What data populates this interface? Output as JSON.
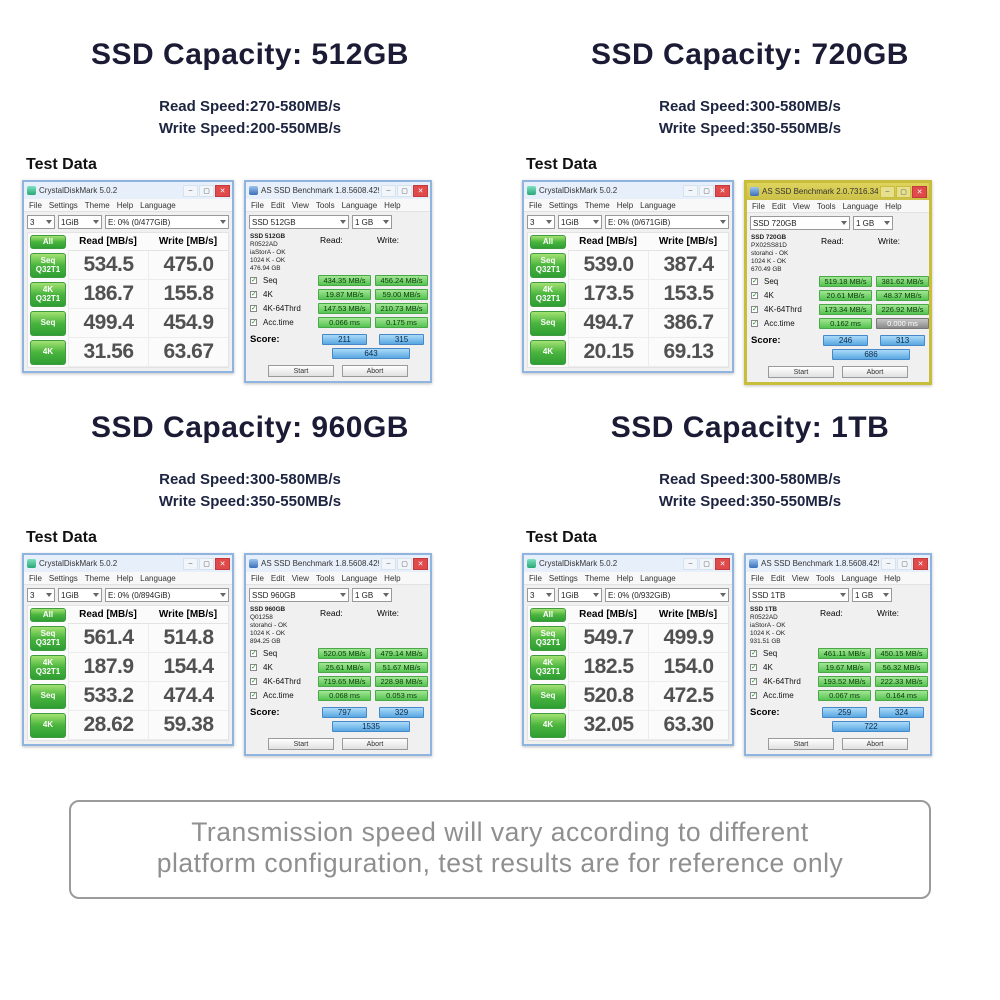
{
  "sections": [
    {
      "title": "SSD Capacity: 512GB",
      "read_speed": "Read Speed:270-580MB/s",
      "write_speed": "Write Speed:200-550MB/s",
      "test_data_label": "Test Data",
      "cdm": {
        "title": "CrystalDiskMark 5.0.2",
        "menu": [
          "File",
          "Settings",
          "Theme",
          "Help",
          "Language"
        ],
        "dropdowns": [
          "3",
          "1GiB",
          "E: 0% (0/477GiB)"
        ],
        "all_label": "All",
        "read_header": "Read [MB/s]",
        "write_header": "Write [MB/s]",
        "rows": [
          {
            "label": "Seq Q32T1",
            "read": "534.5",
            "write": "475.0"
          },
          {
            "label": "4K Q32T1",
            "read": "186.7",
            "write": "155.8"
          },
          {
            "label": "Seq",
            "read": "499.4",
            "write": "454.9"
          },
          {
            "label": "4K",
            "read": "31.56",
            "write": "63.67"
          }
        ]
      },
      "asd": {
        "title": "AS SSD Benchmark 1.8.5608.42992",
        "menu": [
          "File",
          "Edit",
          "View",
          "Tools",
          "Language",
          "Help"
        ],
        "dropdown1": "SSD 512GB",
        "dropdown2": "1 GB",
        "drive_info": [
          "SSD 512GB",
          "R0522AD",
          "iaStorA - OK",
          "1024 K - OK",
          "476.94 GB"
        ],
        "read_header": "Read:",
        "write_header": "Write:",
        "rows": [
          {
            "label": "Seq",
            "read": "434.35 MB/s",
            "write": "456.24 MB/s"
          },
          {
            "label": "4K",
            "read": "19.87 MB/s",
            "write": "59.00 MB/s"
          },
          {
            "label": "4K-64Thrd",
            "read": "147.53 MB/s",
            "write": "210.73 MB/s"
          },
          {
            "label": "Acc.time",
            "read": "0.066 ms",
            "write": "0.175 ms"
          }
        ],
        "score_label": "Score:",
        "score_read": "211",
        "score_write": "315",
        "score_total": "643",
        "start_label": "Start",
        "abort_label": "Abort",
        "theme": "blue"
      }
    },
    {
      "title": "SSD Capacity: 720GB",
      "read_speed": "Read Speed:300-580MB/s",
      "write_speed": "Write Speed:350-550MB/s",
      "test_data_label": "Test Data",
      "cdm": {
        "title": "CrystalDiskMark 5.0.2",
        "menu": [
          "File",
          "Settings",
          "Theme",
          "Help",
          "Language"
        ],
        "dropdowns": [
          "3",
          "1GiB",
          "E: 0% (0/671GiB)"
        ],
        "all_label": "All",
        "read_header": "Read [MB/s]",
        "write_header": "Write [MB/s]",
        "rows": [
          {
            "label": "Seq Q32T1",
            "read": "539.0",
            "write": "387.4"
          },
          {
            "label": "4K Q32T1",
            "read": "173.5",
            "write": "153.5"
          },
          {
            "label": "Seq",
            "read": "494.7",
            "write": "386.7"
          },
          {
            "label": "4K",
            "read": "20.15",
            "write": "69.13"
          }
        ]
      },
      "asd": {
        "title": "AS SSD Benchmark 2.0.7316.34247",
        "menu": [
          "File",
          "Edit",
          "View",
          "Tools",
          "Language",
          "Help"
        ],
        "dropdown1": "SSD 720GB",
        "dropdown2": "1 GB",
        "drive_info": [
          "SSD 720GB",
          "PX02SS81D",
          "storahci - OK",
          "1024 K - OK",
          "670.49 GB"
        ],
        "read_header": "Read:",
        "write_header": "Write:",
        "rows": [
          {
            "label": "Seq",
            "read": "519.18 MB/s",
            "write": "381.62 MB/s"
          },
          {
            "label": "4K",
            "read": "20.61 MB/s",
            "write": "48.37 MB/s"
          },
          {
            "label": "4K-64Thrd",
            "read": "173.34 MB/s",
            "write": "226.92 MB/s"
          },
          {
            "label": "Acc.time",
            "read": "0.162 ms",
            "write": "0.000 ms",
            "write_gray": true
          }
        ],
        "score_label": "Score:",
        "score_read": "246",
        "score_write": "313",
        "score_total": "686",
        "start_label": "Start",
        "abort_label": "Abort",
        "theme": "yellow"
      }
    },
    {
      "title": "SSD Capacity: 960GB",
      "read_speed": "Read Speed:300-580MB/s",
      "write_speed": "Write Speed:350-550MB/s",
      "test_data_label": "Test Data",
      "cdm": {
        "title": "CrystalDiskMark 5.0.2",
        "menu": [
          "File",
          "Settings",
          "Theme",
          "Help",
          "Language"
        ],
        "dropdowns": [
          "3",
          "1GiB",
          "E: 0% (0/894GiB)"
        ],
        "all_label": "All",
        "read_header": "Read [MB/s]",
        "write_header": "Write [MB/s]",
        "rows": [
          {
            "label": "Seq Q32T1",
            "read": "561.4",
            "write": "514.8"
          },
          {
            "label": "4K Q32T1",
            "read": "187.9",
            "write": "154.4"
          },
          {
            "label": "Seq",
            "read": "533.2",
            "write": "474.4"
          },
          {
            "label": "4K",
            "read": "28.62",
            "write": "59.38"
          }
        ]
      },
      "asd": {
        "title": "AS SSD Benchmark 1.8.5608.42992",
        "menu": [
          "File",
          "Edit",
          "View",
          "Tools",
          "Language",
          "Help"
        ],
        "dropdown1": "SSD 960GB",
        "dropdown2": "1 GB",
        "drive_info": [
          "SSD 960GB",
          "Q01258",
          "storahci - OK",
          "1024 K - OK",
          "894.25 GB"
        ],
        "read_header": "Read:",
        "write_header": "Write:",
        "rows": [
          {
            "label": "Seq",
            "read": "520.05 MB/s",
            "write": "479.14 MB/s"
          },
          {
            "label": "4K",
            "read": "25.61 MB/s",
            "write": "51.67 MB/s"
          },
          {
            "label": "4K-64Thrd",
            "read": "719.65 MB/s",
            "write": "228.98 MB/s"
          },
          {
            "label": "Acc.time",
            "read": "0.068 ms",
            "write": "0.053 ms"
          }
        ],
        "score_label": "Score:",
        "score_read": "797",
        "score_write": "329",
        "score_total": "1535",
        "start_label": "Start",
        "abort_label": "Abort",
        "theme": "blue"
      }
    },
    {
      "title": "SSD Capacity: 1TB",
      "read_speed": "Read Speed:300-580MB/s",
      "write_speed": "Write Speed:350-550MB/s",
      "test_data_label": "Test Data",
      "cdm": {
        "title": "CrystalDiskMark 5.0.2",
        "menu": [
          "File",
          "Settings",
          "Theme",
          "Help",
          "Language"
        ],
        "dropdowns": [
          "3",
          "1GiB",
          "E: 0% (0/932GiB)"
        ],
        "all_label": "All",
        "read_header": "Read [MB/s]",
        "write_header": "Write [MB/s]",
        "rows": [
          {
            "label": "Seq Q32T1",
            "read": "549.7",
            "write": "499.9"
          },
          {
            "label": "4K Q32T1",
            "read": "182.5",
            "write": "154.0"
          },
          {
            "label": "Seq",
            "read": "520.8",
            "write": "472.5"
          },
          {
            "label": "4K",
            "read": "32.05",
            "write": "63.30"
          }
        ]
      },
      "asd": {
        "title": "AS SSD Benchmark 1.8.5608.42992",
        "menu": [
          "File",
          "Edit",
          "View",
          "Tools",
          "Language",
          "Help"
        ],
        "dropdown1": "SSD 1TB",
        "dropdown2": "1 GB",
        "drive_info": [
          "SSD 1TB",
          "R0522AD",
          "iaStorA - OK",
          "1024 K - OK",
          "931.51 GB"
        ],
        "read_header": "Read:",
        "write_header": "Write:",
        "rows": [
          {
            "label": "Seq",
            "read": "461.11 MB/s",
            "write": "450.15 MB/s"
          },
          {
            "label": "4K",
            "read": "19.67 MB/s",
            "write": "56.32 MB/s"
          },
          {
            "label": "4K-64Thrd",
            "read": "193.52 MB/s",
            "write": "222.33 MB/s"
          },
          {
            "label": "Acc.time",
            "read": "0.067 ms",
            "write": "0.164 ms"
          }
        ],
        "score_label": "Score:",
        "score_read": "259",
        "score_write": "324",
        "score_total": "722",
        "start_label": "Start",
        "abort_label": "Abort",
        "theme": "blue"
      }
    }
  ],
  "footer": {
    "line1": "Transmission speed will vary according to different",
    "line2": "platform configuration, test results are for reference only"
  }
}
